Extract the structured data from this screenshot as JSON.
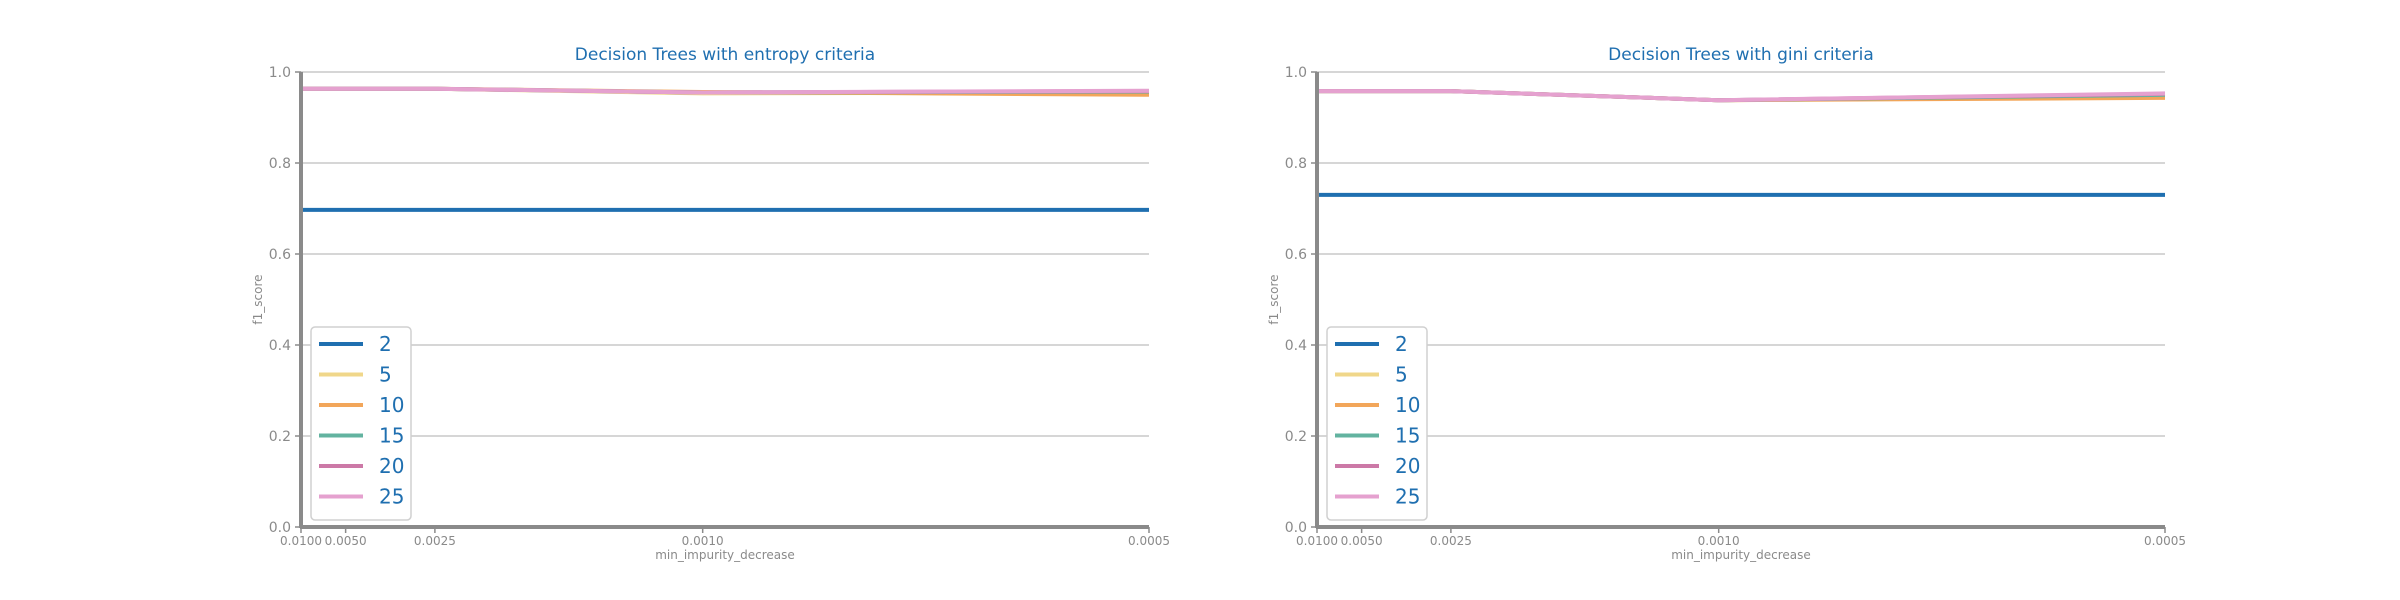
{
  "chart_data": [
    {
      "type": "line",
      "title": "Decision Trees with entropy criteria",
      "xlabel": "min_impurity_decrease",
      "ylabel": "f1_score",
      "x": [
        0.01,
        0.005,
        0.0025,
        0.001,
        0.0005
      ],
      "x_tick_labels": [
        "0.0100",
        "0.0050",
        "0.0025",
        "0.0010",
        "0.0005"
      ],
      "x_scale": "reciprocal",
      "ylim": [
        0.0,
        1.0
      ],
      "y_ticks": [
        0.0,
        0.2,
        0.4,
        0.6,
        0.8,
        1.0
      ],
      "y_tick_labels": [
        "0.0",
        "0.2",
        "0.4",
        "0.6",
        "0.8",
        "1.0"
      ],
      "grid": "horizontal",
      "legend_position": "lower-left",
      "series": [
        {
          "name": "2",
          "color": "#1f6fb0",
          "values": [
            0.697,
            0.697,
            0.697,
            0.697,
            0.697
          ]
        },
        {
          "name": "5",
          "color": "#f0d78a",
          "values": [
            0.963,
            0.963,
            0.963,
            0.953,
            0.955
          ]
        },
        {
          "name": "10",
          "color": "#f2a65a",
          "values": [
            0.963,
            0.963,
            0.963,
            0.956,
            0.95
          ]
        },
        {
          "name": "15",
          "color": "#63b3a0",
          "values": [
            0.963,
            0.963,
            0.963,
            0.955,
            0.957
          ]
        },
        {
          "name": "20",
          "color": "#cc79a7",
          "values": [
            0.963,
            0.963,
            0.963,
            0.955,
            0.958
          ]
        },
        {
          "name": "25",
          "color": "#e5a1cf",
          "values": [
            0.963,
            0.963,
            0.963,
            0.955,
            0.959
          ]
        }
      ]
    },
    {
      "type": "line",
      "title": "Decision Trees with gini criteria",
      "xlabel": "min_impurity_decrease",
      "ylabel": "f1_score",
      "x": [
        0.01,
        0.005,
        0.0025,
        0.001,
        0.0005
      ],
      "x_tick_labels": [
        "0.0100",
        "0.0050",
        "0.0025",
        "0.0010",
        "0.0005"
      ],
      "x_scale": "reciprocal",
      "ylim": [
        0.0,
        1.0
      ],
      "y_ticks": [
        0.0,
        0.2,
        0.4,
        0.6,
        0.8,
        1.0
      ],
      "y_tick_labels": [
        "0.0",
        "0.2",
        "0.4",
        "0.6",
        "0.8",
        "1.0"
      ],
      "grid": "horizontal",
      "legend_position": "lower-left",
      "series": [
        {
          "name": "2",
          "color": "#1f6fb0",
          "values": [
            0.73,
            0.73,
            0.73,
            0.73,
            0.73
          ]
        },
        {
          "name": "5",
          "color": "#f0d78a",
          "values": [
            0.958,
            0.958,
            0.958,
            0.938,
            0.945
          ]
        },
        {
          "name": "10",
          "color": "#f2a65a",
          "values": [
            0.958,
            0.958,
            0.958,
            0.938,
            0.943
          ]
        },
        {
          "name": "15",
          "color": "#63b3a0",
          "values": [
            0.958,
            0.958,
            0.958,
            0.938,
            0.95
          ]
        },
        {
          "name": "20",
          "color": "#cc79a7",
          "values": [
            0.958,
            0.958,
            0.958,
            0.938,
            0.952
          ]
        },
        {
          "name": "25",
          "color": "#e5a1cf",
          "values": [
            0.958,
            0.958,
            0.958,
            0.938,
            0.953
          ]
        }
      ]
    }
  ]
}
